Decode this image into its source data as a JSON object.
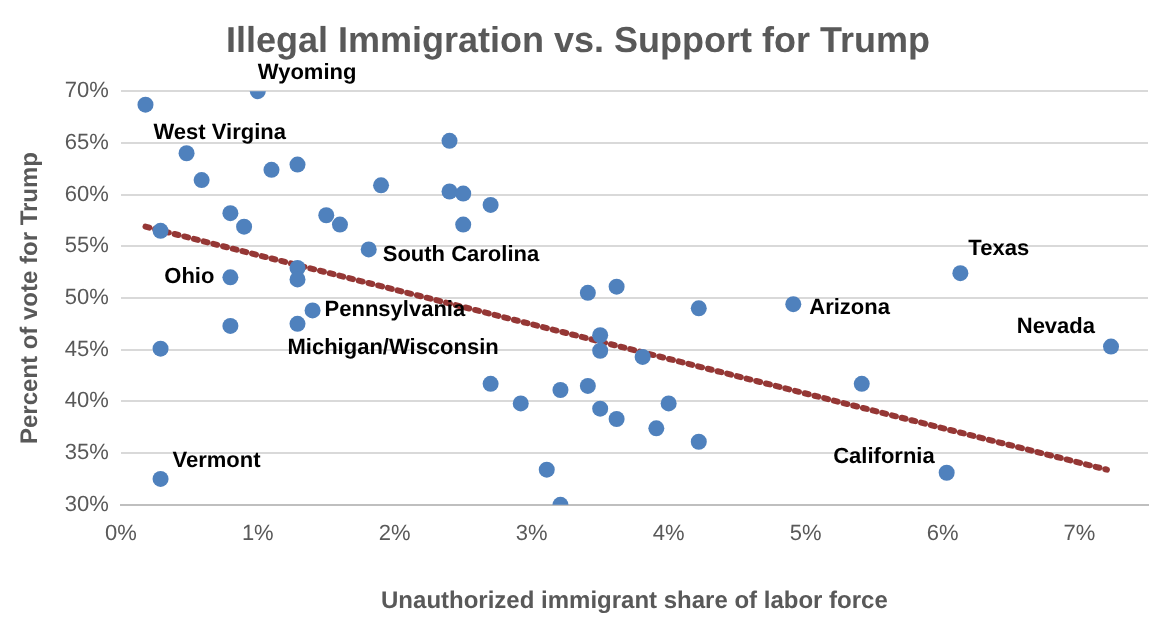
{
  "chart_data": {
    "type": "scatter",
    "title": "Illegal Immigration vs. Support for Trump",
    "xlabel": "Unauthorized immigrant share of labor force",
    "ylabel": "Percent of vote for Trump",
    "series": [
      {
        "type": "scatter",
        "color": "#4f81bd",
        "x": [
          0.18,
          1.0,
          0.48,
          0.59,
          1.1,
          1.29,
          0.29,
          0.8,
          0.9,
          0.8,
          1.29,
          1.29,
          1.4,
          1.29,
          0.8,
          0.29,
          1.5,
          1.6,
          1.9,
          1.81,
          2.4,
          2.4,
          2.5,
          2.5,
          2.7,
          3.41,
          3.62,
          3.5,
          3.5,
          4.22,
          4.91,
          6.13,
          7.23,
          2.7,
          2.92,
          3.21,
          3.41,
          3.11,
          3.21,
          0.29,
          3.81,
          5.41,
          3.5,
          3.62,
          4.0,
          3.91,
          4.22,
          6.03
        ],
        "values": [
          68.7,
          70.0,
          64.0,
          61.4,
          62.4,
          62.9,
          56.5,
          58.2,
          56.9,
          52.0,
          52.9,
          51.8,
          48.8,
          47.5,
          47.3,
          45.1,
          58.0,
          57.1,
          60.9,
          54.7,
          65.2,
          60.3,
          60.1,
          57.1,
          59.0,
          50.5,
          51.1,
          46.4,
          44.9,
          49.0,
          49.4,
          52.4,
          45.3,
          41.7,
          39.8,
          41.1,
          41.5,
          33.4,
          30.0,
          32.5,
          44.3,
          41.7,
          39.3,
          38.3,
          39.8,
          37.4,
          36.1,
          33.1
        ]
      },
      {
        "type": "line",
        "color": "#953735",
        "line_style": "dotted",
        "marker": "none",
        "x": [
          0.18,
          7.2
        ],
        "values": [
          56.9,
          33.4
        ]
      }
    ],
    "xlim": [
      0,
      7.5
    ],
    "xticks": [
      {
        "value": 0,
        "label": "0%"
      },
      {
        "value": 1,
        "label": "1%"
      },
      {
        "value": 2,
        "label": "2%"
      },
      {
        "value": 3,
        "label": "3%"
      },
      {
        "value": 4,
        "label": "4%"
      },
      {
        "value": 5,
        "label": "5%"
      },
      {
        "value": 6,
        "label": "6%"
      },
      {
        "value": 7,
        "label": "7%"
      }
    ],
    "ylim": [
      30,
      70
    ],
    "yticks": [
      {
        "value": 30,
        "label": "30%"
      },
      {
        "value": 35,
        "label": "35%"
      },
      {
        "value": 40,
        "label": "40%"
      },
      {
        "value": 45,
        "label": "45%"
      },
      {
        "value": 50,
        "label": "50%"
      },
      {
        "value": 55,
        "label": "55%"
      },
      {
        "value": 60,
        "label": "60%"
      },
      {
        "value": 65,
        "label": "65%"
      },
      {
        "value": 70,
        "label": "70%"
      }
    ],
    "grid": "y",
    "legend": false,
    "marker": "circle",
    "annotations": [
      {
        "text": "Wyoming",
        "x": 1.0,
        "y": 70.0
      },
      {
        "text": "West Virgina",
        "x": 0.18,
        "y": 68.7
      },
      {
        "text": "Ohio",
        "x": 0.8,
        "y": 52.0
      },
      {
        "text": "South Carolina",
        "x": 1.81,
        "y": 54.7
      },
      {
        "text": "Pennsylvania",
        "x": 1.4,
        "y": 48.8
      },
      {
        "text": "Michigan/Wisconsin",
        "x": 1.29,
        "y": 47.5
      },
      {
        "text": "Vermont",
        "x": 0.29,
        "y": 32.5
      },
      {
        "text": "Texas",
        "x": 6.13,
        "y": 52.4
      },
      {
        "text": "Arizona",
        "x": 4.91,
        "y": 49.4
      },
      {
        "text": "Nevada",
        "x": 7.23,
        "y": 45.3
      },
      {
        "text": "California",
        "x": 6.03,
        "y": 33.1
      }
    ]
  }
}
